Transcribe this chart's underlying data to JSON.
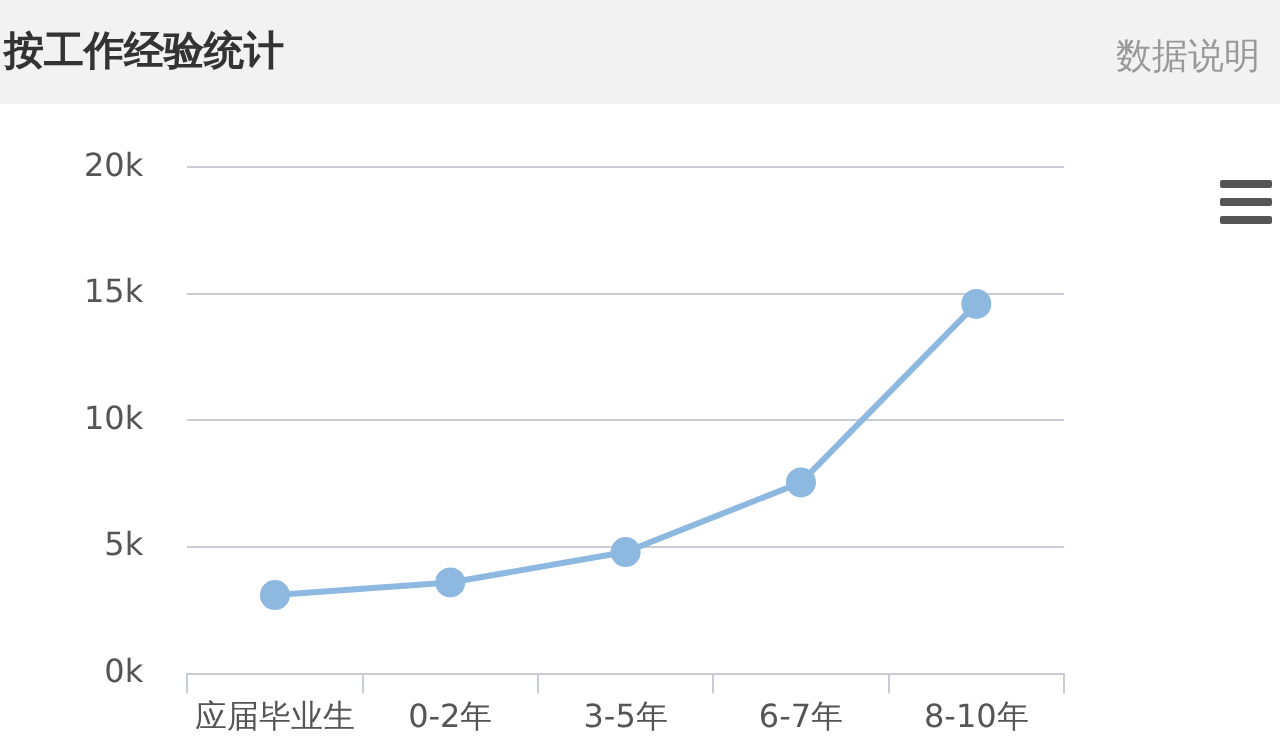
{
  "chart_data": {
    "type": "line",
    "title": "按工作经验统计",
    "annotations": [
      "数据说明"
    ],
    "categories": [
      "应届毕业生",
      "0-2年",
      "3-5年",
      "6-7年",
      "8-10年"
    ],
    "series": [
      {
        "color": "#8db8e0",
        "values": [
          3100,
          3600,
          4800,
          7550,
          14600
        ]
      }
    ],
    "ylim": [
      0,
      20000
    ],
    "yticks": [
      {
        "value": 0,
        "label": "0k"
      },
      {
        "value": 5000,
        "label": "5k"
      },
      {
        "value": 10000,
        "label": "10k"
      },
      {
        "value": 15000,
        "label": "15k"
      },
      {
        "value": 20000,
        "label": "20k"
      }
    ],
    "grid": "y",
    "legend": false,
    "marker": "circle",
    "line_style": "solid"
  }
}
